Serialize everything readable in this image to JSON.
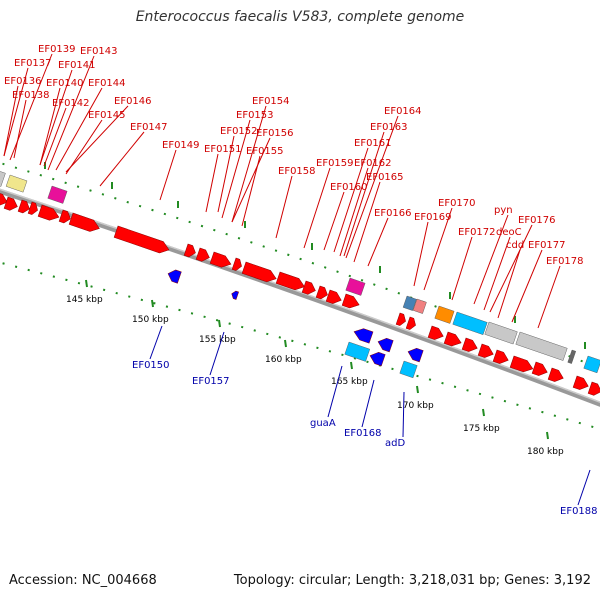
{
  "title": "Enterococcus faecalis V583, complete genome",
  "footer": {
    "accession": "Accession: NC_004668",
    "summary": "Topology: circular; Length: 3,218,031 bp; Genes: 3,192"
  },
  "colors": {
    "forward_gene": "#ff0000",
    "reverse_gene": "#0000ff",
    "backbone": "#999999",
    "tick": "#228b22",
    "top_label": "#d00000",
    "bottom_label": "#0000aa",
    "pink": "#e8109a",
    "yellow": "#f0e68c",
    "cyan": "#00bfff",
    "orange": "#ff8c00",
    "gray": "#c8c8c8"
  },
  "kbp_labels": [
    "145 kbp",
    "150 kbp",
    "155 kbp",
    "160 kbp",
    "165 kbp",
    "170 kbp",
    "175 kbp",
    "180 kbp"
  ],
  "top_labels": [
    "EF0139",
    "EF0143",
    "EF0137",
    "EF0141",
    "EF0136",
    "EF0140",
    "EF0144",
    "EF0138",
    "EF0142",
    "EF0146",
    "EF0145",
    "EF0147",
    "EF0149",
    "EF0154",
    "EF0153",
    "EF0152",
    "EF0156",
    "EF0151",
    "EF0155",
    "EF0164",
    "EF0163",
    "EF0161",
    "EF0159",
    "EF0162",
    "EF0158",
    "EF0165",
    "EF0160",
    "EF0166",
    "EF0170",
    "EF0169",
    "pyn",
    "EF0176",
    "EF0172",
    "deoC",
    "cdd",
    "EF0177",
    "EF0178"
  ],
  "bottom_labels": [
    "EF0150",
    "EF0157",
    "guaA",
    "EF0168",
    "adD",
    "EF0188"
  ]
}
